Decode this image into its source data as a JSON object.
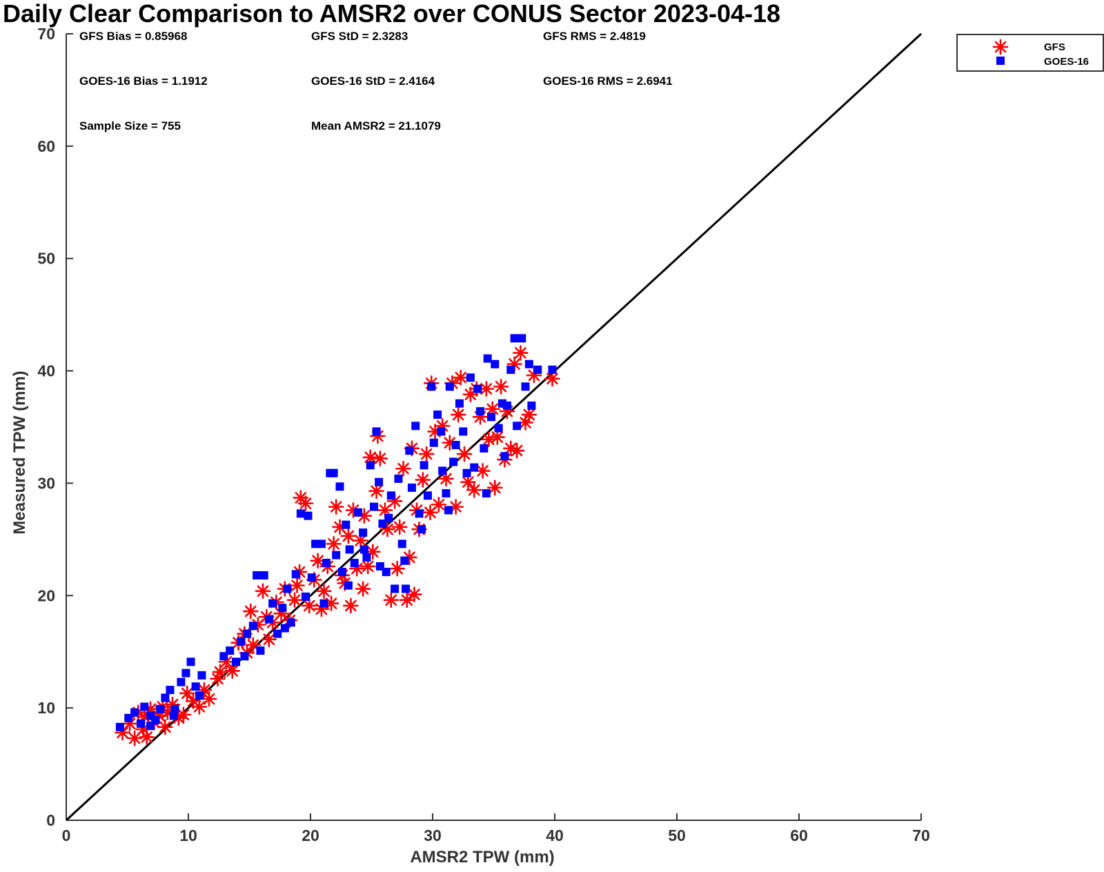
{
  "chart_data": {
    "type": "scatter",
    "title": "Daily Clear Comparison to AMSR2 over CONUS Sector 2023-04-18",
    "xlabel": "AMSR2 TPW (mm)",
    "ylabel": "Measured TPW (mm)",
    "xlim": [
      0,
      70
    ],
    "ylim": [
      0,
      70
    ],
    "xticks": [
      "0",
      "10",
      "20",
      "30",
      "40",
      "50",
      "60",
      "70"
    ],
    "yticks": [
      "0",
      "10",
      "20",
      "30",
      "40",
      "50",
      "60",
      "70"
    ],
    "grid": false,
    "legend": {
      "placement": "top-right-outside",
      "entries": [
        "GFS",
        "GOES-16"
      ]
    },
    "reference_line": {
      "from": [
        0,
        0
      ],
      "to": [
        70,
        70
      ],
      "color": "#000000"
    },
    "stats": [
      "GFS Bias = 0.85968",
      "GFS StD = 2.3283",
      "GFS RMS = 2.4819",
      "GOES-16 Bias = 1.1912",
      "GOES-16 StD = 2.4164",
      "GOES-16 RMS = 2.6941",
      "Sample Size = 755",
      "Mean AMSR2 = 21.1079"
    ],
    "series": [
      {
        "name": "GFS",
        "marker": "asterisk",
        "color": "#ff0000",
        "points": [
          [
            4.6,
            7.8
          ],
          [
            5.2,
            8.6
          ],
          [
            5.6,
            7.3
          ],
          [
            5.9,
            9.6
          ],
          [
            6.3,
            8.1
          ],
          [
            6.6,
            7.4
          ],
          [
            6.9,
            9.9
          ],
          [
            7.2,
            8.7
          ],
          [
            7.6,
            9.3
          ],
          [
            7.9,
            10.1
          ],
          [
            8.3,
            9.6
          ],
          [
            8.7,
            10.3
          ],
          [
            9.2,
            9.1
          ],
          [
            9.6,
            9.4
          ],
          [
            9.9,
            11.3
          ],
          [
            10.4,
            10.6
          ],
          [
            10.9,
            10.1
          ],
          [
            11.3,
            11.6
          ],
          [
            11.7,
            10.8
          ],
          [
            12.6,
            13.2
          ],
          [
            13.1,
            14.1
          ],
          [
            13.6,
            13.3
          ],
          [
            14.1,
            15.8
          ],
          [
            14.6,
            16.6
          ],
          [
            15.1,
            18.6
          ],
          [
            15.3,
            15.6
          ],
          [
            15.7,
            17.4
          ],
          [
            16.1,
            20.4
          ],
          [
            16.4,
            18.1
          ],
          [
            16.9,
            17.6
          ],
          [
            17.2,
            19.4
          ],
          [
            17.6,
            18.4
          ],
          [
            17.9,
            20.6
          ],
          [
            18.3,
            17.8
          ],
          [
            18.7,
            19.6
          ],
          [
            19.1,
            22.1
          ],
          [
            19.2,
            28.7
          ],
          [
            19.6,
            28.2
          ],
          [
            19.9,
            19.1
          ],
          [
            20.3,
            21.4
          ],
          [
            20.6,
            23.1
          ],
          [
            21.1,
            20.4
          ],
          [
            21.4,
            22.6
          ],
          [
            21.7,
            19.3
          ],
          [
            21.9,
            24.6
          ],
          [
            22.1,
            27.9
          ],
          [
            22.4,
            26.1
          ],
          [
            22.8,
            21.1
          ],
          [
            23.1,
            25.3
          ],
          [
            23.3,
            19.1
          ],
          [
            23.5,
            27.6
          ],
          [
            23.8,
            22.4
          ],
          [
            24.1,
            24.9
          ],
          [
            24.4,
            27.1
          ],
          [
            24.7,
            22.6
          ],
          [
            24.9,
            32.3
          ],
          [
            25.1,
            23.9
          ],
          [
            25.4,
            29.3
          ],
          [
            25.5,
            34.2
          ],
          [
            25.7,
            32.2
          ],
          [
            26.1,
            27.6
          ],
          [
            26.3,
            25.9
          ],
          [
            26.6,
            19.6
          ],
          [
            26.9,
            28.4
          ],
          [
            27.3,
            26.1
          ],
          [
            27.6,
            31.3
          ],
          [
            27.9,
            19.6
          ],
          [
            28.1,
            23.4
          ],
          [
            28.3,
            33.1
          ],
          [
            28.5,
            20.1
          ],
          [
            28.7,
            27.6
          ],
          [
            28.9,
            25.9
          ],
          [
            29.2,
            30.3
          ],
          [
            29.5,
            32.6
          ],
          [
            29.8,
            27.4
          ],
          [
            29.9,
            38.9
          ],
          [
            30.2,
            34.6
          ],
          [
            30.5,
            28.1
          ],
          [
            30.8,
            35.1
          ],
          [
            31.1,
            30.4
          ],
          [
            31.4,
            33.6
          ],
          [
            31.6,
            38.9
          ],
          [
            31.9,
            27.9
          ],
          [
            32.1,
            36.1
          ],
          [
            32.3,
            39.4
          ],
          [
            32.6,
            32.6
          ],
          [
            32.9,
            30.1
          ],
          [
            33.1,
            37.9
          ],
          [
            33.4,
            29.4
          ],
          [
            33.6,
            38.4
          ],
          [
            33.9,
            35.9
          ],
          [
            34.1,
            31.1
          ],
          [
            34.4,
            38.4
          ],
          [
            34.6,
            33.9
          ],
          [
            34.9,
            36.6
          ],
          [
            35.1,
            29.6
          ],
          [
            35.3,
            34.1
          ],
          [
            35.6,
            38.6
          ],
          [
            35.9,
            32.1
          ],
          [
            36.1,
            36.4
          ],
          [
            36.4,
            33.1
          ],
          [
            36.7,
            40.6
          ],
          [
            36.9,
            32.9
          ],
          [
            37.2,
            41.6
          ],
          [
            37.6,
            35.4
          ],
          [
            37.9,
            36.1
          ],
          [
            38.3,
            39.6
          ],
          [
            39.8,
            39.3
          ],
          [
            22.6,
            21.8
          ],
          [
            24.3,
            20.6
          ],
          [
            27.1,
            22.4
          ],
          [
            18.9,
            20.9
          ],
          [
            20.9,
            18.8
          ],
          [
            14.8,
            14.9
          ],
          [
            16.6,
            16.1
          ],
          [
            12.4,
            12.6
          ],
          [
            8.1,
            8.3
          ],
          [
            6.4,
            9.2
          ]
        ]
      },
      {
        "name": "GOES-16",
        "marker": "square",
        "color": "#0000ff",
        "points": [
          [
            4.4,
            8.3
          ],
          [
            5.1,
            9.1
          ],
          [
            5.6,
            9.6
          ],
          [
            6.1,
            8.6
          ],
          [
            6.4,
            10.1
          ],
          [
            6.9,
            9.3
          ],
          [
            7.3,
            8.9
          ],
          [
            7.7,
            9.9
          ],
          [
            8.1,
            10.9
          ],
          [
            8.5,
            11.6
          ],
          [
            8.9,
            9.9
          ],
          [
            9.4,
            12.3
          ],
          [
            9.8,
            13.1
          ],
          [
            10.2,
            14.1
          ],
          [
            10.6,
            11.9
          ],
          [
            11.1,
            12.9
          ],
          [
            12.9,
            14.6
          ],
          [
            13.4,
            15.1
          ],
          [
            13.9,
            14.1
          ],
          [
            14.3,
            15.9
          ],
          [
            14.8,
            16.6
          ],
          [
            15.3,
            17.3
          ],
          [
            15.6,
            21.8
          ],
          [
            15.9,
            15.1
          ],
          [
            16.2,
            21.8
          ],
          [
            16.6,
            17.9
          ],
          [
            16.9,
            19.3
          ],
          [
            17.3,
            16.6
          ],
          [
            17.7,
            18.9
          ],
          [
            18.1,
            20.6
          ],
          [
            18.4,
            17.6
          ],
          [
            18.8,
            21.9
          ],
          [
            19.2,
            27.3
          ],
          [
            19.6,
            19.9
          ],
          [
            19.8,
            27.1
          ],
          [
            20.1,
            21.6
          ],
          [
            20.4,
            24.6
          ],
          [
            20.9,
            24.6
          ],
          [
            21.3,
            22.9
          ],
          [
            21.6,
            30.9
          ],
          [
            21.9,
            30.9
          ],
          [
            22.1,
            23.6
          ],
          [
            22.4,
            29.7
          ],
          [
            22.6,
            22.1
          ],
          [
            22.9,
            26.3
          ],
          [
            23.2,
            24.1
          ],
          [
            23.6,
            22.9
          ],
          [
            23.9,
            27.4
          ],
          [
            24.3,
            25.6
          ],
          [
            24.6,
            23.4
          ],
          [
            24.9,
            31.6
          ],
          [
            25.2,
            27.9
          ],
          [
            25.4,
            34.6
          ],
          [
            25.6,
            30.1
          ],
          [
            25.9,
            26.4
          ],
          [
            26.2,
            22.1
          ],
          [
            26.6,
            28.9
          ],
          [
            26.9,
            20.6
          ],
          [
            27.2,
            30.4
          ],
          [
            27.5,
            24.6
          ],
          [
            27.8,
            20.6
          ],
          [
            28.1,
            32.9
          ],
          [
            28.3,
            29.6
          ],
          [
            28.6,
            35.1
          ],
          [
            28.9,
            27.3
          ],
          [
            29.3,
            31.6
          ],
          [
            29.6,
            28.9
          ],
          [
            29.9,
            38.6
          ],
          [
            30.1,
            33.6
          ],
          [
            30.4,
            36.1
          ],
          [
            30.7,
            34.6
          ],
          [
            31.1,
            29.1
          ],
          [
            31.4,
            38.6
          ],
          [
            31.7,
            31.9
          ],
          [
            31.9,
            33.4
          ],
          [
            32.2,
            37.1
          ],
          [
            32.5,
            34.6
          ],
          [
            32.8,
            30.9
          ],
          [
            33.1,
            39.4
          ],
          [
            33.4,
            31.4
          ],
          [
            33.7,
            38.4
          ],
          [
            33.9,
            36.4
          ],
          [
            34.2,
            33.1
          ],
          [
            34.5,
            41.1
          ],
          [
            34.8,
            35.9
          ],
          [
            35.1,
            40.6
          ],
          [
            35.4,
            34.9
          ],
          [
            35.7,
            37.1
          ],
          [
            35.9,
            32.4
          ],
          [
            36.1,
            36.9
          ],
          [
            36.4,
            40.1
          ],
          [
            36.7,
            42.9
          ],
          [
            36.9,
            35.1
          ],
          [
            37.3,
            42.9
          ],
          [
            37.6,
            38.6
          ],
          [
            37.9,
            40.6
          ],
          [
            38.1,
            36.9
          ],
          [
            38.6,
            40.1
          ],
          [
            39.8,
            40.1
          ],
          [
            23.1,
            20.9
          ],
          [
            25.7,
            22.6
          ],
          [
            27.7,
            23.1
          ],
          [
            29.1,
            25.9
          ],
          [
            31.3,
            27.6
          ],
          [
            34.4,
            29.1
          ],
          [
            21.1,
            19.3
          ],
          [
            17.9,
            17.1
          ],
          [
            14.6,
            14.6
          ],
          [
            10.9,
            11.1
          ],
          [
            8.8,
            9.3
          ],
          [
            6.9,
            8.4
          ],
          [
            24.4,
            24.1
          ],
          [
            26.4,
            26.9
          ],
          [
            30.8,
            31.1
          ]
        ]
      }
    ]
  }
}
